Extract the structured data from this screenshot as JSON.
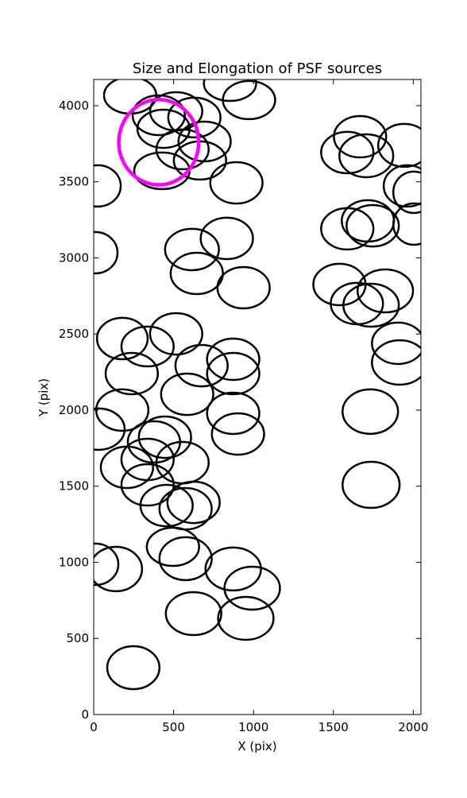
{
  "chart_data": {
    "type": "ellipse",
    "title": "Size and Elongation of PSF sources",
    "x_label": "X (pix)",
    "y_label": "Y (pix)",
    "xlim": [
      0,
      2048
    ],
    "ylim": [
      0,
      4172
    ],
    "xticks": [
      0,
      500,
      1000,
      1500,
      2000
    ],
    "yticks": [
      0,
      500,
      1000,
      1500,
      2000,
      2500,
      3000,
      3500,
      4000
    ],
    "series": [
      {
        "color": "#000000",
        "x": [
          228,
          853,
          972,
          407,
          516,
          630,
          437,
          694,
          556,
          665,
          427,
          25,
          893,
          10,
          615,
          833,
          645,
          938,
          179,
          337,
          516,
          675,
          873,
          873,
          238,
          585,
          179,
          873,
          30,
          903,
          446,
          377,
          337,
          208,
          556,
          337,
          625,
          456,
          575,
          10,
          139,
          496,
          575,
          873,
          992,
          625,
          952,
          248,
          1667,
          1587,
          1706,
          1944,
          1964,
          2004,
          1716,
          1746,
          1587,
          2004,
          1538,
          1825,
          1647,
          1736,
          1905,
          1915,
          1731,
          1736
        ],
        "y": [
          4068,
          4146,
          4037,
          3937,
          3963,
          3922,
          3848,
          3765,
          3713,
          3640,
          3572,
          3473,
          3493,
          3034,
          3055,
          3128,
          2898,
          2804,
          2470,
          2418,
          2501,
          2292,
          2334,
          2240,
          2240,
          2104,
          2000,
          1979,
          1875,
          1843,
          1822,
          1791,
          1676,
          1624,
          1655,
          1509,
          1394,
          1373,
          1352,
          987,
          956,
          1102,
          1024,
          956,
          830,
          663,
          632,
          308,
          3796,
          3692,
          3671,
          3739,
          3473,
          3431,
          3243,
          3211,
          3191,
          3222,
          2825,
          2783,
          2700,
          2689,
          2439,
          2313,
          1990,
          1509
        ],
        "width": [
          327,
          327,
          327,
          327,
          327,
          327,
          327,
          327,
          327,
          327,
          347,
          288,
          327,
          278,
          337,
          327,
          327,
          327,
          317,
          327,
          327,
          327,
          327,
          327,
          327,
          327,
          327,
          327,
          327,
          327,
          327,
          327,
          327,
          327,
          327,
          327,
          327,
          327,
          327,
          288,
          327,
          327,
          327,
          347,
          347,
          347,
          347,
          327,
          327,
          327,
          337,
          327,
          298,
          258,
          327,
          327,
          327,
          258,
          327,
          347,
          327,
          347,
          327,
          347,
          347,
          357
        ],
        "height": [
          240,
          230,
          251,
          261,
          251,
          261,
          251,
          261,
          261,
          251,
          240,
          272,
          272,
          272,
          272,
          272,
          272,
          272,
          272,
          261,
          272,
          272,
          272,
          272,
          272,
          272,
          272,
          272,
          272,
          272,
          272,
          272,
          272,
          272,
          272,
          272,
          272,
          272,
          272,
          272,
          292,
          251,
          282,
          282,
          282,
          282,
          282,
          282,
          272,
          272,
          282,
          282,
          272,
          272,
          272,
          272,
          272,
          272,
          272,
          282,
          272,
          282,
          272,
          292,
          292,
          303
        ]
      },
      {
        "color": "#ff00ff",
        "x": [
          407
        ],
        "y": [
          3760
        ],
        "width": [
          500
        ],
        "height": [
          560
        ]
      }
    ]
  }
}
